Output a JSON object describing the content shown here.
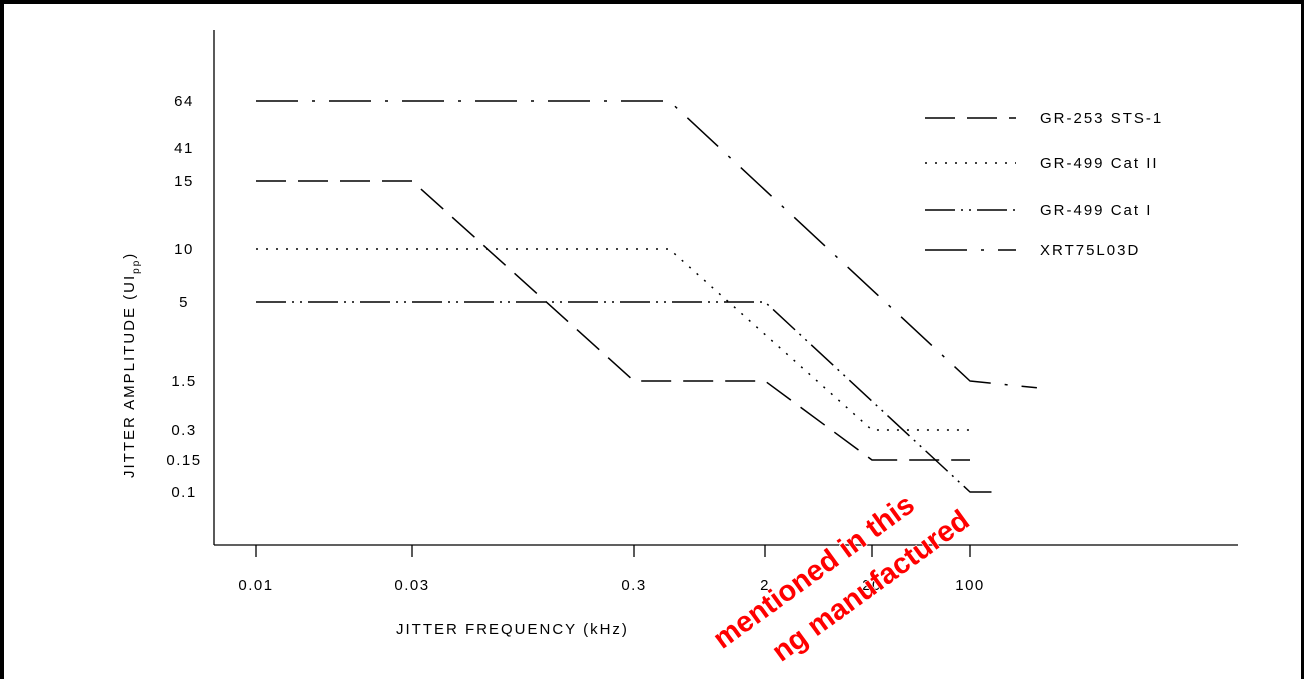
{
  "chart_data": {
    "type": "line",
    "title": "",
    "xlabel": "JITTER FREQUENCY  (kHz)",
    "ylabel": "JITTER AMPLITUDE  (UI",
    "ylabel_subscript": "pp",
    "ylabel_close": ")",
    "x_ticks": [
      "0.01",
      "0.03",
      "0.3",
      "2",
      "20",
      "100"
    ],
    "y_ticks": [
      "64",
      "41",
      "15",
      "10",
      "5",
      "1.5",
      "0.3",
      "0.15",
      "0.1"
    ],
    "x_tick_values": [
      0.01,
      0.03,
      0.3,
      2,
      20,
      100
    ],
    "y_tick_values": [
      64,
      41,
      15,
      10,
      5,
      1.5,
      0.3,
      0.15,
      0.1
    ],
    "x_scale": "log",
    "y_scale": "nonuniform",
    "grid": false,
    "legend_position": "top-right",
    "series": [
      {
        "name": "GR-253   STS-1",
        "style": "dashed",
        "x": [
          0.01,
          0.03,
          0.3,
          2,
          20,
          100
        ],
        "y": [
          15,
          15,
          1.5,
          1.5,
          0.15,
          0.15
        ]
      },
      {
        "name": "GR-499   Cat II",
        "style": "dotted",
        "x": [
          0.01,
          0.5,
          20,
          100
        ],
        "y": [
          10,
          10,
          0.3,
          0.3
        ]
      },
      {
        "name": "GR-499   Cat I",
        "style": "dash-dot-dot",
        "x": [
          0.01,
          2,
          100,
          150
        ],
        "y": [
          5,
          5,
          0.1,
          0.1
        ]
      },
      {
        "name": "XRT75L03D",
        "style": "dash-dot",
        "x": [
          0.01,
          0.5,
          100,
          300
        ],
        "y": [
          64,
          64,
          1.5,
          1.2
        ]
      }
    ]
  },
  "watermark": {
    "line1": "mentioned in this",
    "line2": "ng manufactured",
    "color": "#ff0000"
  },
  "colors": {
    "line": "#000000",
    "background": "#ffffff",
    "border": "#000000"
  }
}
